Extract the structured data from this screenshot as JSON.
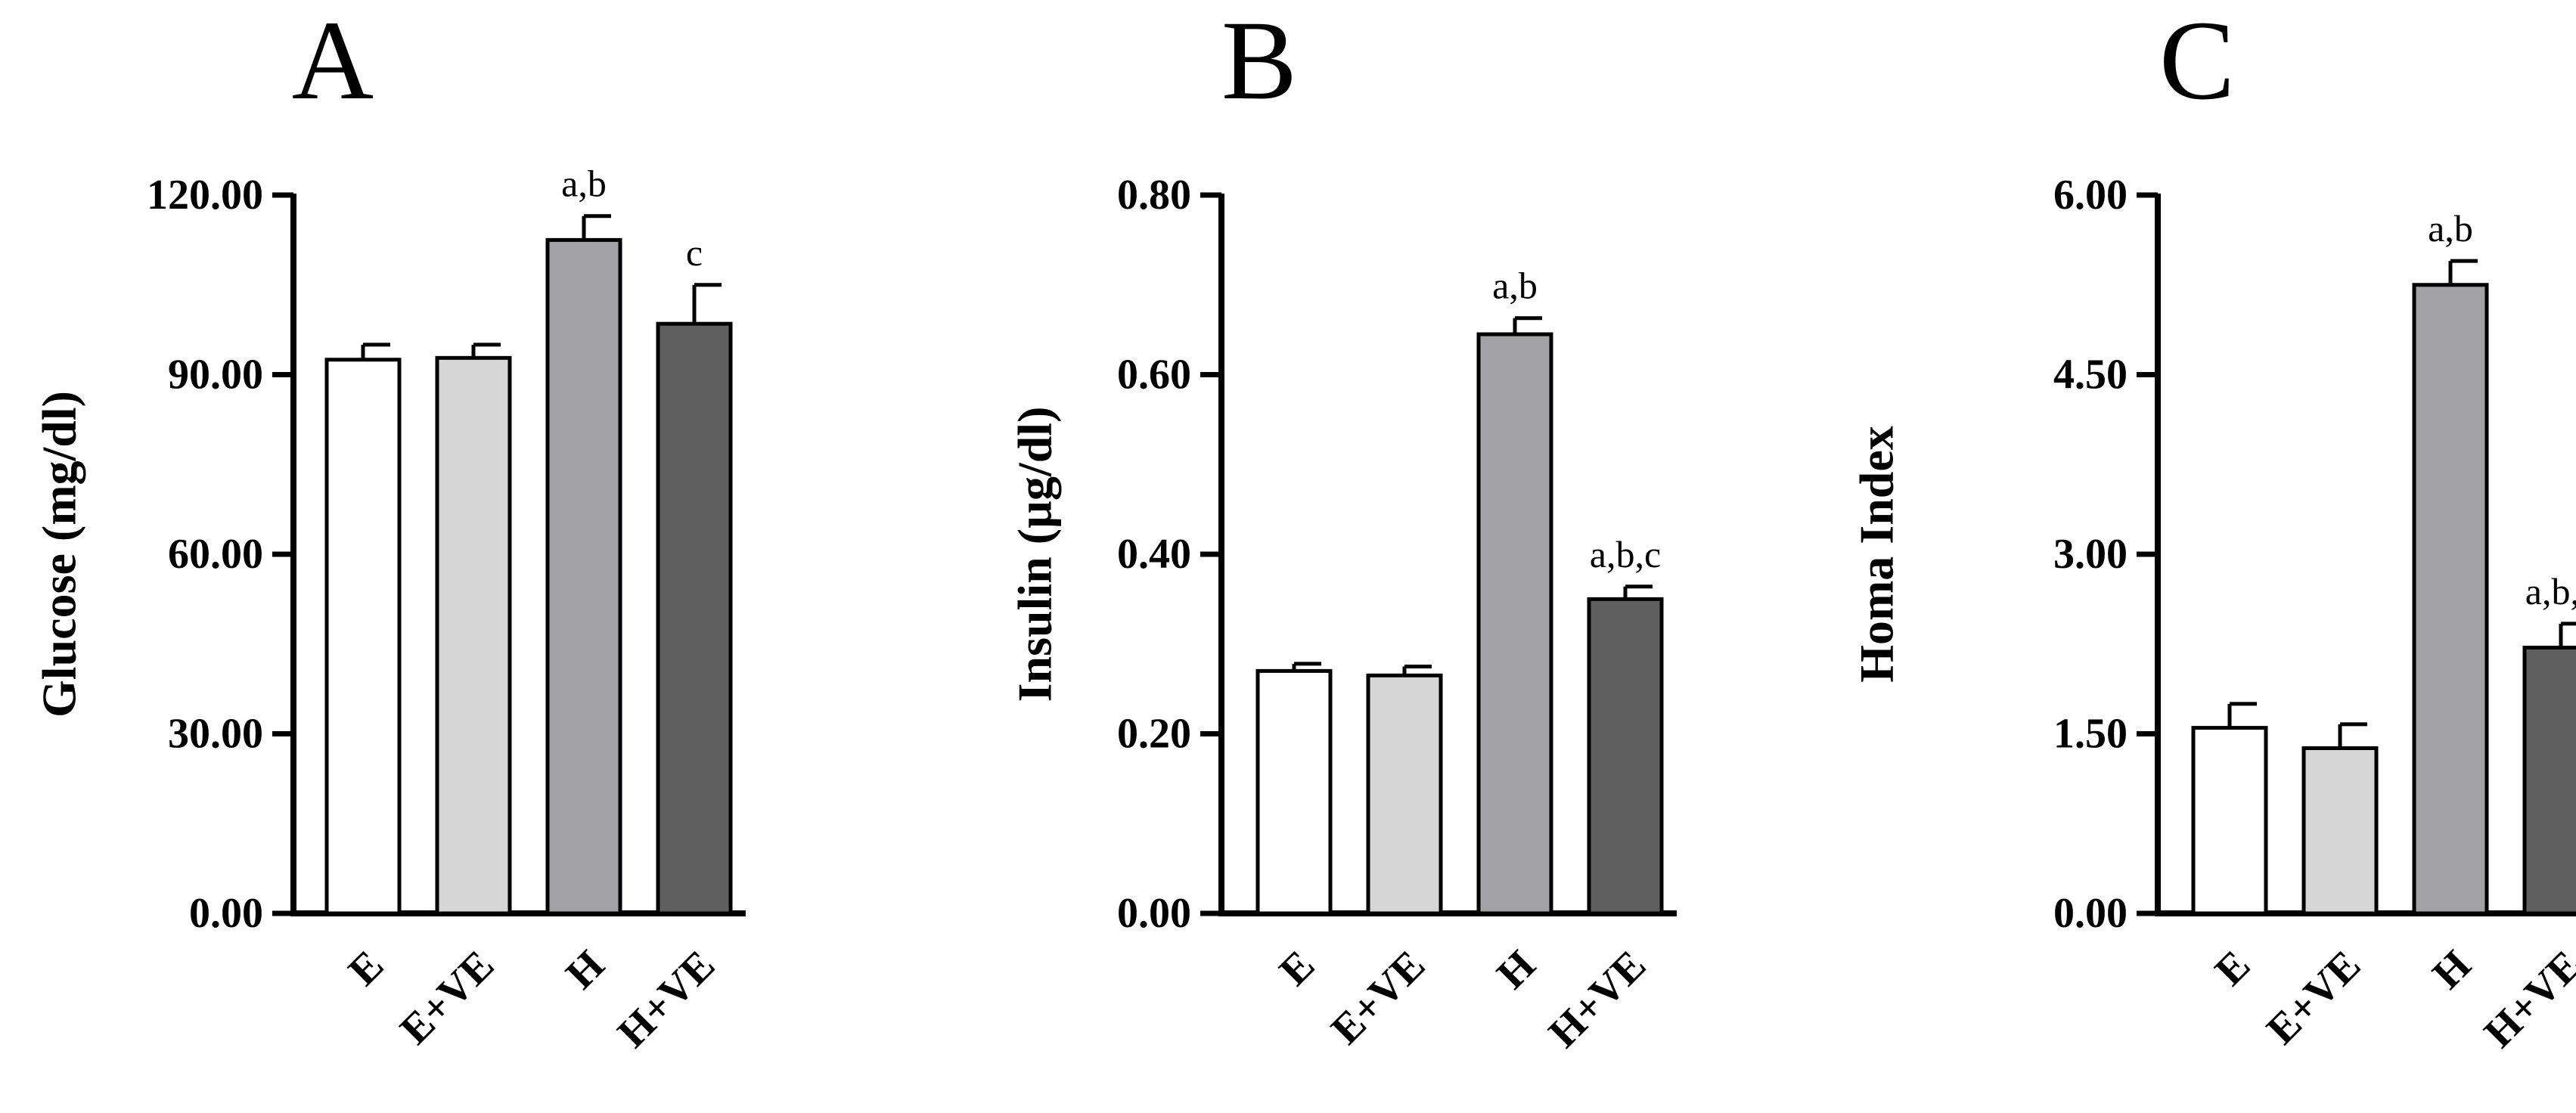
{
  "chart_data": [
    {
      "type": "bar",
      "panel": "A",
      "ylabel": "Glucose (mg/dl)",
      "categories": [
        "E",
        "E+VE",
        "H",
        "H+VE"
      ],
      "values": [
        92.5,
        92.8,
        112.5,
        98.5
      ],
      "errors": [
        2.5,
        2.2,
        4.0,
        6.5
      ],
      "annotations": [
        "",
        "",
        "a,b",
        "c"
      ],
      "colors": [
        "#ffffff",
        "#d6d6d6",
        "#a1a1a6",
        "#5f5f5f"
      ],
      "ylim": [
        0,
        120
      ],
      "yticks": [
        0,
        30,
        60,
        90,
        120
      ],
      "ytick_labels": [
        "0.00",
        "30.00",
        "60.00",
        "90.00",
        "120.00"
      ]
    },
    {
      "type": "bar",
      "panel": "B",
      "ylabel": "Insulin (µg/dl)",
      "categories": [
        "E",
        "E+VE",
        "H",
        "H+VE"
      ],
      "values": [
        0.27,
        0.265,
        0.645,
        0.35
      ],
      "errors": [
        0.008,
        0.01,
        0.018,
        0.014
      ],
      "annotations": [
        "",
        "",
        "a,b",
        "a,b,c"
      ],
      "colors": [
        "#ffffff",
        "#d6d6d6",
        "#a1a1a6",
        "#5f5f5f"
      ],
      "ylim": [
        0,
        0.8
      ],
      "yticks": [
        0,
        0.2,
        0.4,
        0.6,
        0.8
      ],
      "ytick_labels": [
        "0.00",
        "0.20",
        "0.40",
        "0.60",
        "0.80"
      ]
    },
    {
      "type": "bar",
      "panel": "C",
      "ylabel": "Homa Index",
      "categories": [
        "E",
        "E+VE",
        "H",
        "H+VE"
      ],
      "values": [
        1.55,
        1.38,
        5.25,
        2.22
      ],
      "errors": [
        0.2,
        0.2,
        0.2,
        0.2
      ],
      "annotations": [
        "",
        "",
        "a,b",
        "a,b,c"
      ],
      "colors": [
        "#ffffff",
        "#d6d6d6",
        "#a1a1a6",
        "#5f5f5f"
      ],
      "ylim": [
        0,
        6
      ],
      "yticks": [
        0,
        1.5,
        3,
        4.5,
        6
      ],
      "ytick_labels": [
        "0.00",
        "1.50",
        "3.00",
        "4.50",
        "6.00"
      ]
    }
  ]
}
